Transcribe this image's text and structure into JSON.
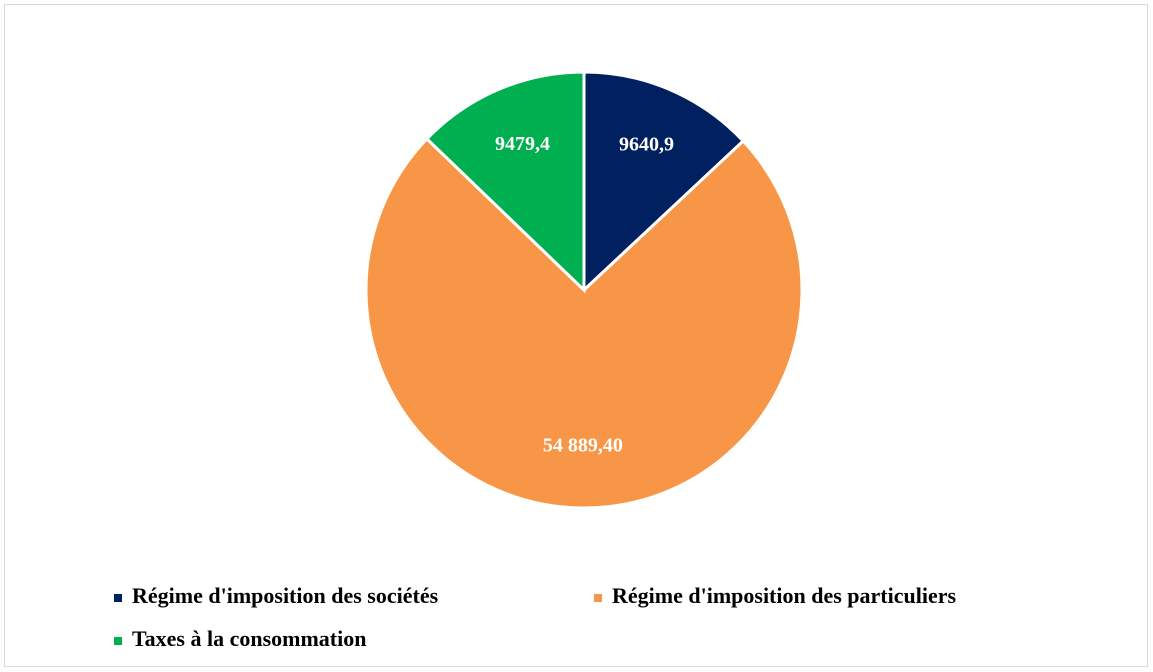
{
  "chart_data": {
    "type": "pie",
    "categories": [
      "Régime d'imposition des sociétés",
      "Régime d'imposition des particuliers",
      "Taxes à la consommation"
    ],
    "values": [
      9640.9,
      54889.4,
      9479.4
    ],
    "value_labels": [
      "9640,9",
      "54 889,40",
      "9479,4"
    ],
    "colors": [
      "#002060",
      "#F79646",
      "#00B050"
    ],
    "legend": "bottom"
  }
}
